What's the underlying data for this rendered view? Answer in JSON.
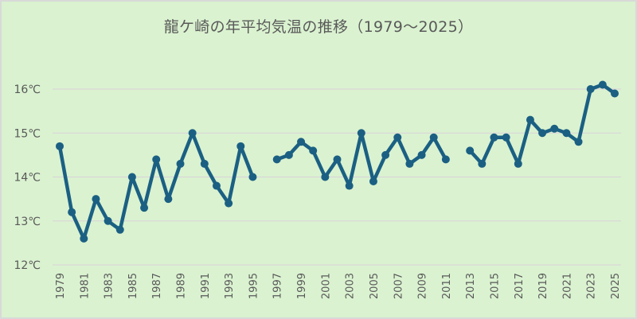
{
  "chart_data": {
    "type": "line",
    "title": "龍ケ崎の年平均気温の推移（1979～2025）",
    "xlabel": "",
    "ylabel": "",
    "ylim": [
      12,
      16
    ],
    "y_ticks": [
      "12℃",
      "13℃",
      "14℃",
      "15℃",
      "16℃"
    ],
    "y_tick_values": [
      12,
      13,
      14,
      15,
      16
    ],
    "x_tick_labels": [
      "1979",
      "1981",
      "1983",
      "1985",
      "1987",
      "1989",
      "1991",
      "1993",
      "1995",
      "1997",
      "1999",
      "2001",
      "2003",
      "2005",
      "2007",
      "2009",
      "2011",
      "2013",
      "2015",
      "2017",
      "2019",
      "2021",
      "2023",
      "2025"
    ],
    "grid": true,
    "legend": "none",
    "x": [
      1979,
      1980,
      1981,
      1982,
      1983,
      1984,
      1985,
      1986,
      1987,
      1988,
      1989,
      1990,
      1991,
      1992,
      1993,
      1994,
      1995,
      1996,
      1997,
      1998,
      1999,
      2000,
      2001,
      2002,
      2003,
      2004,
      2005,
      2006,
      2007,
      2008,
      2009,
      2010,
      2011,
      2012,
      2013,
      2014,
      2015,
      2016,
      2017,
      2018,
      2019,
      2020,
      2021,
      2022,
      2023,
      2024,
      2025
    ],
    "series": [
      {
        "name": "年平均気温",
        "color": "#1b6083",
        "values": [
          14.7,
          13.2,
          12.6,
          13.5,
          13.0,
          12.8,
          14.0,
          13.3,
          14.4,
          13.5,
          14.3,
          15.0,
          14.3,
          13.8,
          13.4,
          14.7,
          14.0,
          null,
          14.4,
          14.5,
          14.8,
          14.6,
          14.0,
          14.4,
          13.8,
          15.0,
          13.9,
          14.5,
          14.9,
          14.3,
          14.5,
          14.9,
          14.4,
          null,
          14.6,
          14.3,
          14.9,
          14.9,
          14.3,
          15.3,
          15.0,
          15.1,
          15.0,
          14.8,
          16.0,
          16.1,
          15.9
        ]
      }
    ]
  },
  "colors": {
    "background": "#daf2d0",
    "border": "#d9d9d9",
    "line": "#1b6083",
    "grid": "#d9d3d9",
    "text": "#595959"
  }
}
